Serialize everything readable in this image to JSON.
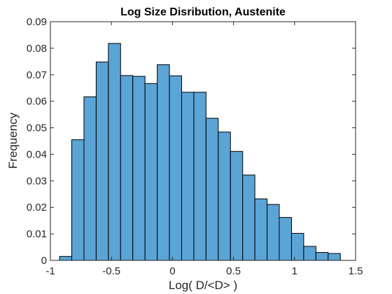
{
  "chart_data": {
    "type": "bar",
    "title": "Log Size Disribution, Austenite",
    "xlabel": "Log( D/<D> )",
    "ylabel": "Frequency",
    "xlim": [
      -1,
      1.5
    ],
    "ylim": [
      0,
      0.09
    ],
    "xticks": [
      "-1",
      "-0.5",
      "0",
      "0.5",
      "1",
      "1.5"
    ],
    "yticks": [
      "0",
      "0.01",
      "0.02",
      "0.03",
      "0.04",
      "0.05",
      "0.06",
      "0.07",
      "0.08",
      "0.09"
    ],
    "bin_edges": [
      -0.925,
      -0.825,
      -0.725,
      -0.625,
      -0.525,
      -0.425,
      -0.325,
      -0.225,
      -0.125,
      -0.025,
      0.075,
      0.175,
      0.275,
      0.375,
      0.475,
      0.575,
      0.675,
      0.775,
      0.875,
      0.975,
      1.075,
      1.175,
      1.275,
      1.375
    ],
    "values": [
      0.0015,
      0.0455,
      0.0617,
      0.0748,
      0.0818,
      0.0697,
      0.0694,
      0.0667,
      0.0738,
      0.0696,
      0.0634,
      0.0634,
      0.0536,
      0.0484,
      0.0411,
      0.0322,
      0.0232,
      0.0211,
      0.0162,
      0.0102,
      0.0053,
      0.003,
      0.0026,
      0.0008
    ],
    "bar_color": "#5ba4d6",
    "edge_color": "#000000",
    "grid": false
  }
}
